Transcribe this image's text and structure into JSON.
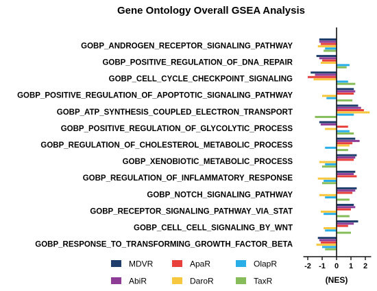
{
  "chart_data": {
    "type": "bar",
    "orientation": "horizontal",
    "title": "Gene Ontology  Overall  GSEA Analysis",
    "xlabel": "(NES)",
    "ylabel": "",
    "xlim": [
      -2.5,
      2.5
    ],
    "xticks": [
      -2,
      -1,
      0,
      1,
      2
    ],
    "xtick_labels": [
      "-2",
      "-1",
      "0",
      "1",
      "2"
    ],
    "grid": false,
    "legend_position": "bottom-left",
    "categories": [
      "GOBP_ANDROGEN_RECEPTOR_SIGNALING_PATHWAY",
      "GOBP_POSITIVE_REGULATION_OF_DNA_REPAIR",
      "GOBP_CELL_CYCLE_CHECKPOINT_SIGNALING",
      "GOBP_POSITIVE_REGULATION_OF_APOPTOTIC_SIGNALING_PATHWAY",
      "GOBP_ATP_SYNTHESIS_COUPLED_ELECTRON_TRANSPORT",
      "GOBP_POSITIVE_REGULATION_OF_GLYCOLYTIC_PROCESS",
      "GOBP_REGULATION_OF_CHOLESTEROL_METABOLIC_PROCESS",
      "GOBP_XENOBIOTIC_METABOLIC_PROCESS",
      "GOBP_REGULATION_OF_INFLAMMATORY_RESPONSE",
      "GOBP_NOTCH_SIGNALING_PATHWAY",
      "GOBP_RECEPTOR_SIGNALING_PATHWAY_VIA_STAT",
      "GOBP_CELL_CELL_SIGNALING_BY_WNT",
      "GOBP_RESPONSE_TO_TRANSFORMING_GROWTH_FACTOR_BETA"
    ],
    "series": [
      {
        "name": "MDVR",
        "color": "#1f3d6b",
        "values": [
          -1.2,
          -1.4,
          -1.8,
          1.2,
          1.5,
          -1.2,
          1.3,
          1.4,
          1.3,
          1.4,
          1.2,
          1.5,
          -1.3
        ]
      },
      {
        "name": "AbiR",
        "color": "#8e3d96",
        "values": [
          -1.2,
          -1.2,
          -1.5,
          1.3,
          1.7,
          -1.1,
          1.6,
          1.3,
          1.2,
          1.3,
          1.3,
          1.2,
          -1.2
        ]
      },
      {
        "name": "ApaR",
        "color": "#e8413c",
        "values": [
          -1.1,
          -1.0,
          -2.0,
          1.2,
          1.9,
          0.8,
          1.1,
          1.2,
          1.4,
          1.1,
          1.0,
          0.8,
          -1.1
        ]
      },
      {
        "name": "DaroR",
        "color": "#f7c740",
        "values": [
          -1.3,
          -1.1,
          -1.6,
          -1.0,
          2.3,
          -0.8,
          0.9,
          -1.2,
          -1.3,
          -1.2,
          -1.1,
          -0.9,
          -1.4
        ]
      },
      {
        "name": "OlapR",
        "color": "#29aee8",
        "values": [
          -0.8,
          0.9,
          0.8,
          -0.7,
          1.2,
          0.9,
          -0.8,
          -0.8,
          -0.9,
          -0.8,
          -0.9,
          -0.8,
          -1.0
        ]
      },
      {
        "name": "TaxR",
        "color": "#86bd5a",
        "values": [
          -0.9,
          0.7,
          1.3,
          1.1,
          -1.5,
          1.2,
          0.8,
          -1.0,
          -1.0,
          0.9,
          0.9,
          1.0,
          -0.8
        ]
      }
    ]
  }
}
